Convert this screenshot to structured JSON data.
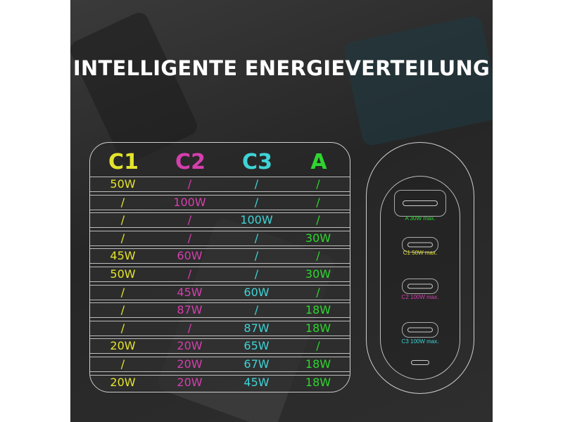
{
  "title": "INTELLIGENTE ENERGIEVERTEILUNG",
  "colors": {
    "C1": "#e3e32c",
    "C2": "#d43fae",
    "C3": "#3fd3d6",
    "A": "#2fd52f"
  },
  "table": {
    "headers": [
      "C1",
      "C2",
      "C3",
      "A"
    ],
    "rows": [
      [
        "50W",
        "/",
        "/",
        "/"
      ],
      [
        "/",
        "100W",
        "/",
        "/"
      ],
      [
        "/",
        "/",
        "100W",
        "/"
      ],
      [
        "/",
        "/",
        "/",
        "30W"
      ],
      [
        "45W",
        "60W",
        "/",
        "/"
      ],
      [
        "50W",
        "/",
        "/",
        "30W"
      ],
      [
        "/",
        "45W",
        "60W",
        "/"
      ],
      [
        "/",
        "87W",
        "/",
        "18W"
      ],
      [
        "/",
        "/",
        "87W",
        "18W"
      ],
      [
        "20W",
        "20W",
        "65W",
        "/"
      ],
      [
        "/",
        "20W",
        "67W",
        "18W"
      ],
      [
        "20W",
        "20W",
        "45W",
        "18W"
      ]
    ]
  },
  "charger": {
    "ports": [
      {
        "label": "A 30W max.",
        "type": "usb-a",
        "color": "#2fd52f"
      },
      {
        "label": "C1 50W max.",
        "type": "usb-c",
        "color": "#e3e32c"
      },
      {
        "label": "C2 100W max.",
        "type": "usb-c",
        "color": "#d43fae"
      },
      {
        "label": "C3 100W max.",
        "type": "usb-c",
        "color": "#3fd3d6"
      }
    ]
  }
}
